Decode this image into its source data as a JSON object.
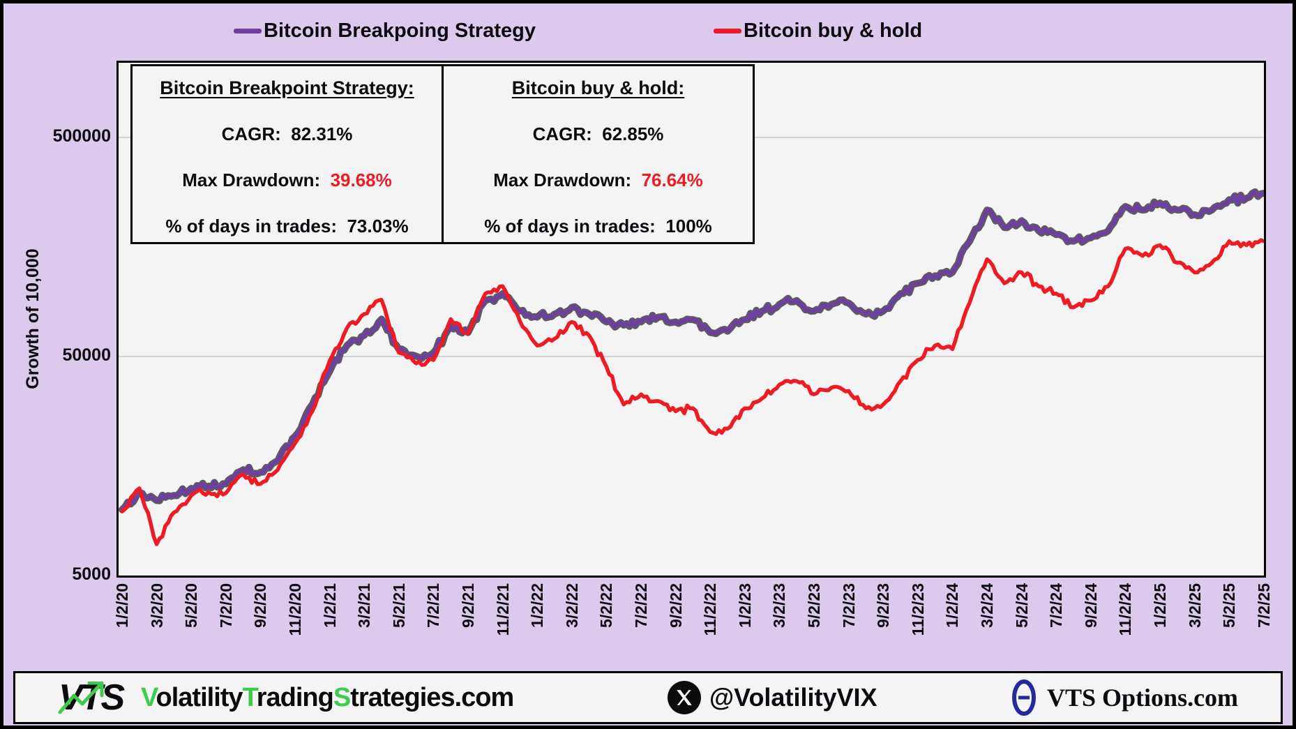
{
  "colors": {
    "page_bg": "#dccaee",
    "plot_bg": "#f5f4f5",
    "grid": "#c8c8c8",
    "text": "#0b0b10",
    "purple": "#6e3fa3",
    "purple_outline": "#5c5c5c",
    "red": "#ed1c24",
    "green": "#3ecb4b",
    "theta_blue": "#28289e"
  },
  "legend": {
    "items": [
      {
        "label": "Bitcoin Breakpoing Strategy",
        "color": "#6e3fa3"
      },
      {
        "label": "Bitcoin buy & hold",
        "color": "#ed1c24"
      }
    ]
  },
  "stats_box": {
    "left": {
      "title": "Bitcoin Breakpoint Strategy:",
      "rows": [
        {
          "label": "CAGR:  ",
          "value": "82.31%",
          "value_color": "#0b0b10"
        },
        {
          "label": "Max Drawdown:  ",
          "value": "39.68%",
          "value_color": "#ed1c24"
        },
        {
          "label": "% of days in trades:  ",
          "value": "73.03%",
          "value_color": "#0b0b10"
        }
      ]
    },
    "right": {
      "title": "Bitcoin buy & hold:",
      "rows": [
        {
          "label": "CAGR:  ",
          "value": "62.85%",
          "value_color": "#0b0b10"
        },
        {
          "label": "Max Drawdown:  ",
          "value": "76.64%",
          "value_color": "#ed1c24"
        },
        {
          "label": "% of days in trades:  ",
          "value": "100%",
          "value_color": "#0b0b10"
        }
      ]
    }
  },
  "y_axis": {
    "title": "Growth of 10,000",
    "ticks": [
      {
        "label": "500000",
        "value": 500000
      },
      {
        "label": "50000",
        "value": 50000
      },
      {
        "label": "5000",
        "value": 5000
      }
    ]
  },
  "x_axis": {
    "ticks": [
      "1/2/20",
      "3/2/20",
      "5/2/20",
      "7/2/20",
      "9/2/20",
      "11/2/20",
      "1/2/21",
      "3/2/21",
      "5/2/21",
      "7/2/21",
      "9/2/21",
      "11/2/21",
      "1/2/22",
      "3/2/22",
      "5/2/22",
      "7/2/22",
      "9/2/22",
      "11/2/22",
      "1/2/23",
      "3/2/23",
      "5/2/23",
      "7/2/23",
      "9/2/23",
      "11/2/23",
      "1/2/24",
      "3/2/24",
      "5/2/24",
      "7/2/24",
      "9/2/24",
      "11/2/24",
      "1/2/25",
      "3/2/25",
      "5/2/25",
      "7/2/25"
    ]
  },
  "footer": {
    "logo_text": "VTS",
    "wordmark_parts": [
      {
        "text": "V",
        "green": true
      },
      {
        "text": "olatility",
        "green": false
      },
      {
        "text": "T",
        "green": true
      },
      {
        "text": "rading",
        "green": false
      },
      {
        "text": "S",
        "green": true
      },
      {
        "text": "trategies.com",
        "green": false
      }
    ],
    "twitter_handle": "@VolatilityVIX",
    "options_text": "VTS Options.com"
  },
  "chart_data": {
    "type": "line",
    "y_scale": "log",
    "ylim": [
      5000,
      1100000
    ],
    "y_gridlines": [
      50000,
      500000
    ],
    "grid": "horizontal-only",
    "legend_position": "top",
    "x_start": "1/2/20",
    "x_end": "7/2/25",
    "x_unit": "months",
    "series": [
      {
        "name": "Bitcoin Breakpoing Strategy",
        "color": "#6e3fa3",
        "outline": "#5c5c5c",
        "values": [
          10000,
          12000,
          11000,
          11600,
          12500,
          12800,
          13100,
          15200,
          14800,
          16700,
          21600,
          30200,
          42700,
          56100,
          62400,
          74100,
          54000,
          50100,
          52000,
          68300,
          64300,
          90000,
          96800,
          80600,
          75600,
          78100,
          83800,
          78100,
          71900,
          69500,
          71900,
          75600,
          71900,
          73700,
          64300,
          65200,
          73700,
          80600,
          86500,
          90000,
          80600,
          86500,
          87700,
          78100,
          80600,
          96800,
          108000,
          116800,
          121100,
          168000,
          233000,
          194000,
          208500,
          187000,
          180000,
          168000,
          173900,
          187000,
          242000,
          233000,
          251000,
          233000,
          222000,
          233000,
          260000,
          264000,
          278000
        ]
      },
      {
        "name": "Bitcoin buy & hold",
        "color": "#ed1c24",
        "outline": null,
        "values": [
          9800,
          12500,
          6950,
          9700,
          11600,
          12000,
          11900,
          14500,
          13100,
          15200,
          20100,
          28100,
          47800,
          67400,
          78100,
          90600,
          52100,
          46500,
          48200,
          74100,
          63400,
          96800,
          104700,
          72400,
          56100,
          60200,
          71900,
          62400,
          44900,
          30200,
          33600,
          31300,
          28100,
          29000,
          22600,
          23400,
          29000,
          32200,
          37200,
          38600,
          33600,
          36000,
          34800,
          29000,
          30200,
          38600,
          48200,
          56100,
          54000,
          88100,
          139000,
          108000,
          121100,
          104400,
          96800,
          83800,
          90000,
          104400,
          155400,
          144000,
          161000,
          134000,
          121000,
          134000,
          167900,
          161000,
          168000
        ]
      }
    ],
    "jitter": {
      "seed": 13,
      "amplitude": 0.02,
      "steps_per_segment": 6
    }
  }
}
